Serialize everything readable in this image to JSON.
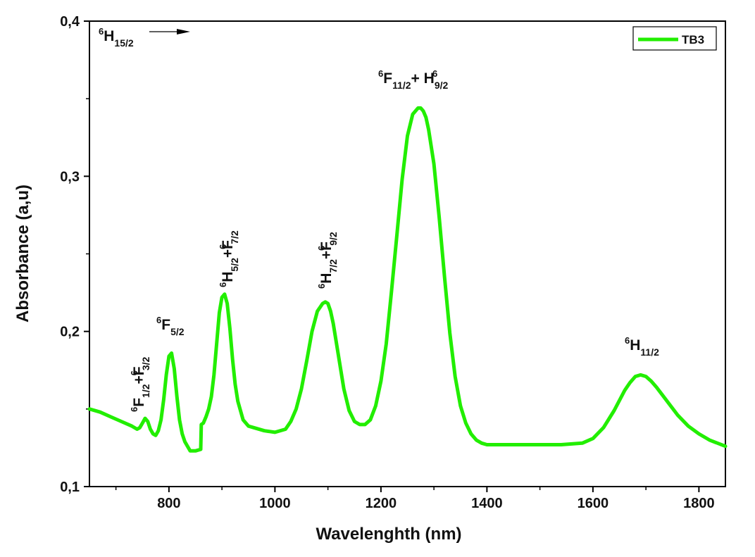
{
  "chart_data": {
    "type": "line",
    "title": "",
    "xlabel": "Wavelenghth (nm)",
    "ylabel": "Absorbance (a,u)",
    "xlim": [
      650,
      1850
    ],
    "ylim": [
      0.1,
      0.4
    ],
    "x_ticks": [
      800,
      1000,
      1200,
      1400,
      1600,
      1800
    ],
    "y_ticks": [
      0.1,
      0.2,
      0.3,
      0.4
    ],
    "y_tick_labels": [
      "0,1",
      "0,2",
      "0,3",
      "0,4"
    ],
    "line_color": "#22ee00",
    "legend": {
      "position": "top-right",
      "entries": [
        "TB3"
      ]
    },
    "series": [
      {
        "name": "TB3",
        "x": [
          650,
          670,
          690,
          710,
          730,
          740,
          745,
          750,
          755,
          760,
          765,
          770,
          775,
          780,
          785,
          790,
          795,
          800,
          805,
          810,
          815,
          820,
          825,
          830,
          840,
          850,
          860,
          861,
          865,
          870,
          875,
          880,
          885,
          890,
          895,
          900,
          905,
          910,
          915,
          920,
          925,
          930,
          940,
          950,
          960,
          980,
          1000,
          1020,
          1030,
          1040,
          1050,
          1060,
          1070,
          1080,
          1090,
          1095,
          1100,
          1105,
          1110,
          1120,
          1130,
          1140,
          1150,
          1160,
          1170,
          1180,
          1190,
          1200,
          1210,
          1220,
          1230,
          1240,
          1250,
          1260,
          1270,
          1275,
          1280,
          1285,
          1290,
          1300,
          1310,
          1320,
          1330,
          1340,
          1350,
          1360,
          1370,
          1380,
          1390,
          1400,
          1420,
          1440,
          1460,
          1500,
          1540,
          1580,
          1600,
          1620,
          1640,
          1660,
          1670,
          1680,
          1690,
          1700,
          1710,
          1720,
          1740,
          1760,
          1780,
          1800,
          1820,
          1850
        ],
        "y": [
          0.15,
          0.148,
          0.145,
          0.142,
          0.139,
          0.137,
          0.138,
          0.141,
          0.144,
          0.142,
          0.137,
          0.134,
          0.133,
          0.136,
          0.143,
          0.156,
          0.172,
          0.184,
          0.186,
          0.176,
          0.158,
          0.143,
          0.134,
          0.129,
          0.123,
          0.123,
          0.124,
          0.14,
          0.141,
          0.145,
          0.15,
          0.158,
          0.172,
          0.192,
          0.212,
          0.222,
          0.224,
          0.218,
          0.202,
          0.182,
          0.166,
          0.155,
          0.143,
          0.139,
          0.138,
          0.136,
          0.135,
          0.137,
          0.142,
          0.15,
          0.163,
          0.181,
          0.2,
          0.213,
          0.218,
          0.219,
          0.218,
          0.213,
          0.205,
          0.184,
          0.163,
          0.149,
          0.142,
          0.14,
          0.14,
          0.143,
          0.152,
          0.168,
          0.192,
          0.226,
          0.262,
          0.298,
          0.326,
          0.34,
          0.344,
          0.344,
          0.342,
          0.338,
          0.33,
          0.308,
          0.273,
          0.235,
          0.199,
          0.171,
          0.152,
          0.141,
          0.134,
          0.13,
          0.128,
          0.127,
          0.127,
          0.127,
          0.127,
          0.127,
          0.127,
          0.128,
          0.131,
          0.138,
          0.149,
          0.162,
          0.167,
          0.171,
          0.172,
          0.171,
          0.168,
          0.164,
          0.155,
          0.146,
          0.139,
          0.134,
          0.13,
          0.126
        ]
      }
    ],
    "annotations": [
      {
        "id": "h15",
        "base": "H",
        "sup": "6",
        "sub": "15/2",
        "rest": "",
        "rest_sup": "",
        "rest_sub": ""
      },
      {
        "id": "f12",
        "base": "F",
        "sup": "6",
        "sub": "1/2",
        "rest": "+F",
        "rest_sup": "6",
        "rest_sub": "3/2"
      },
      {
        "id": "f52",
        "base": "F",
        "sup": "6",
        "sub": "5/2",
        "rest": "",
        "rest_sup": "",
        "rest_sub": ""
      },
      {
        "id": "h52",
        "base": "H",
        "sup": "6",
        "sub": "5/2",
        "rest": "+F",
        "rest_sup": "6",
        "rest_sub": "7/2"
      },
      {
        "id": "h72",
        "base": "H",
        "sup": "6",
        "sub": "7/2",
        "rest": "+F",
        "rest_sup": "6",
        "rest_sub": "9/2"
      },
      {
        "id": "f112",
        "base": "F",
        "sup": "6",
        "sub": "11/2",
        "rest": "+ H",
        "rest_sup": "6",
        "rest_sub": "9/2"
      },
      {
        "id": "h112",
        "base": "H",
        "sup": "6",
        "sub": "11/2",
        "rest": "",
        "rest_sup": "",
        "rest_sub": ""
      }
    ]
  }
}
